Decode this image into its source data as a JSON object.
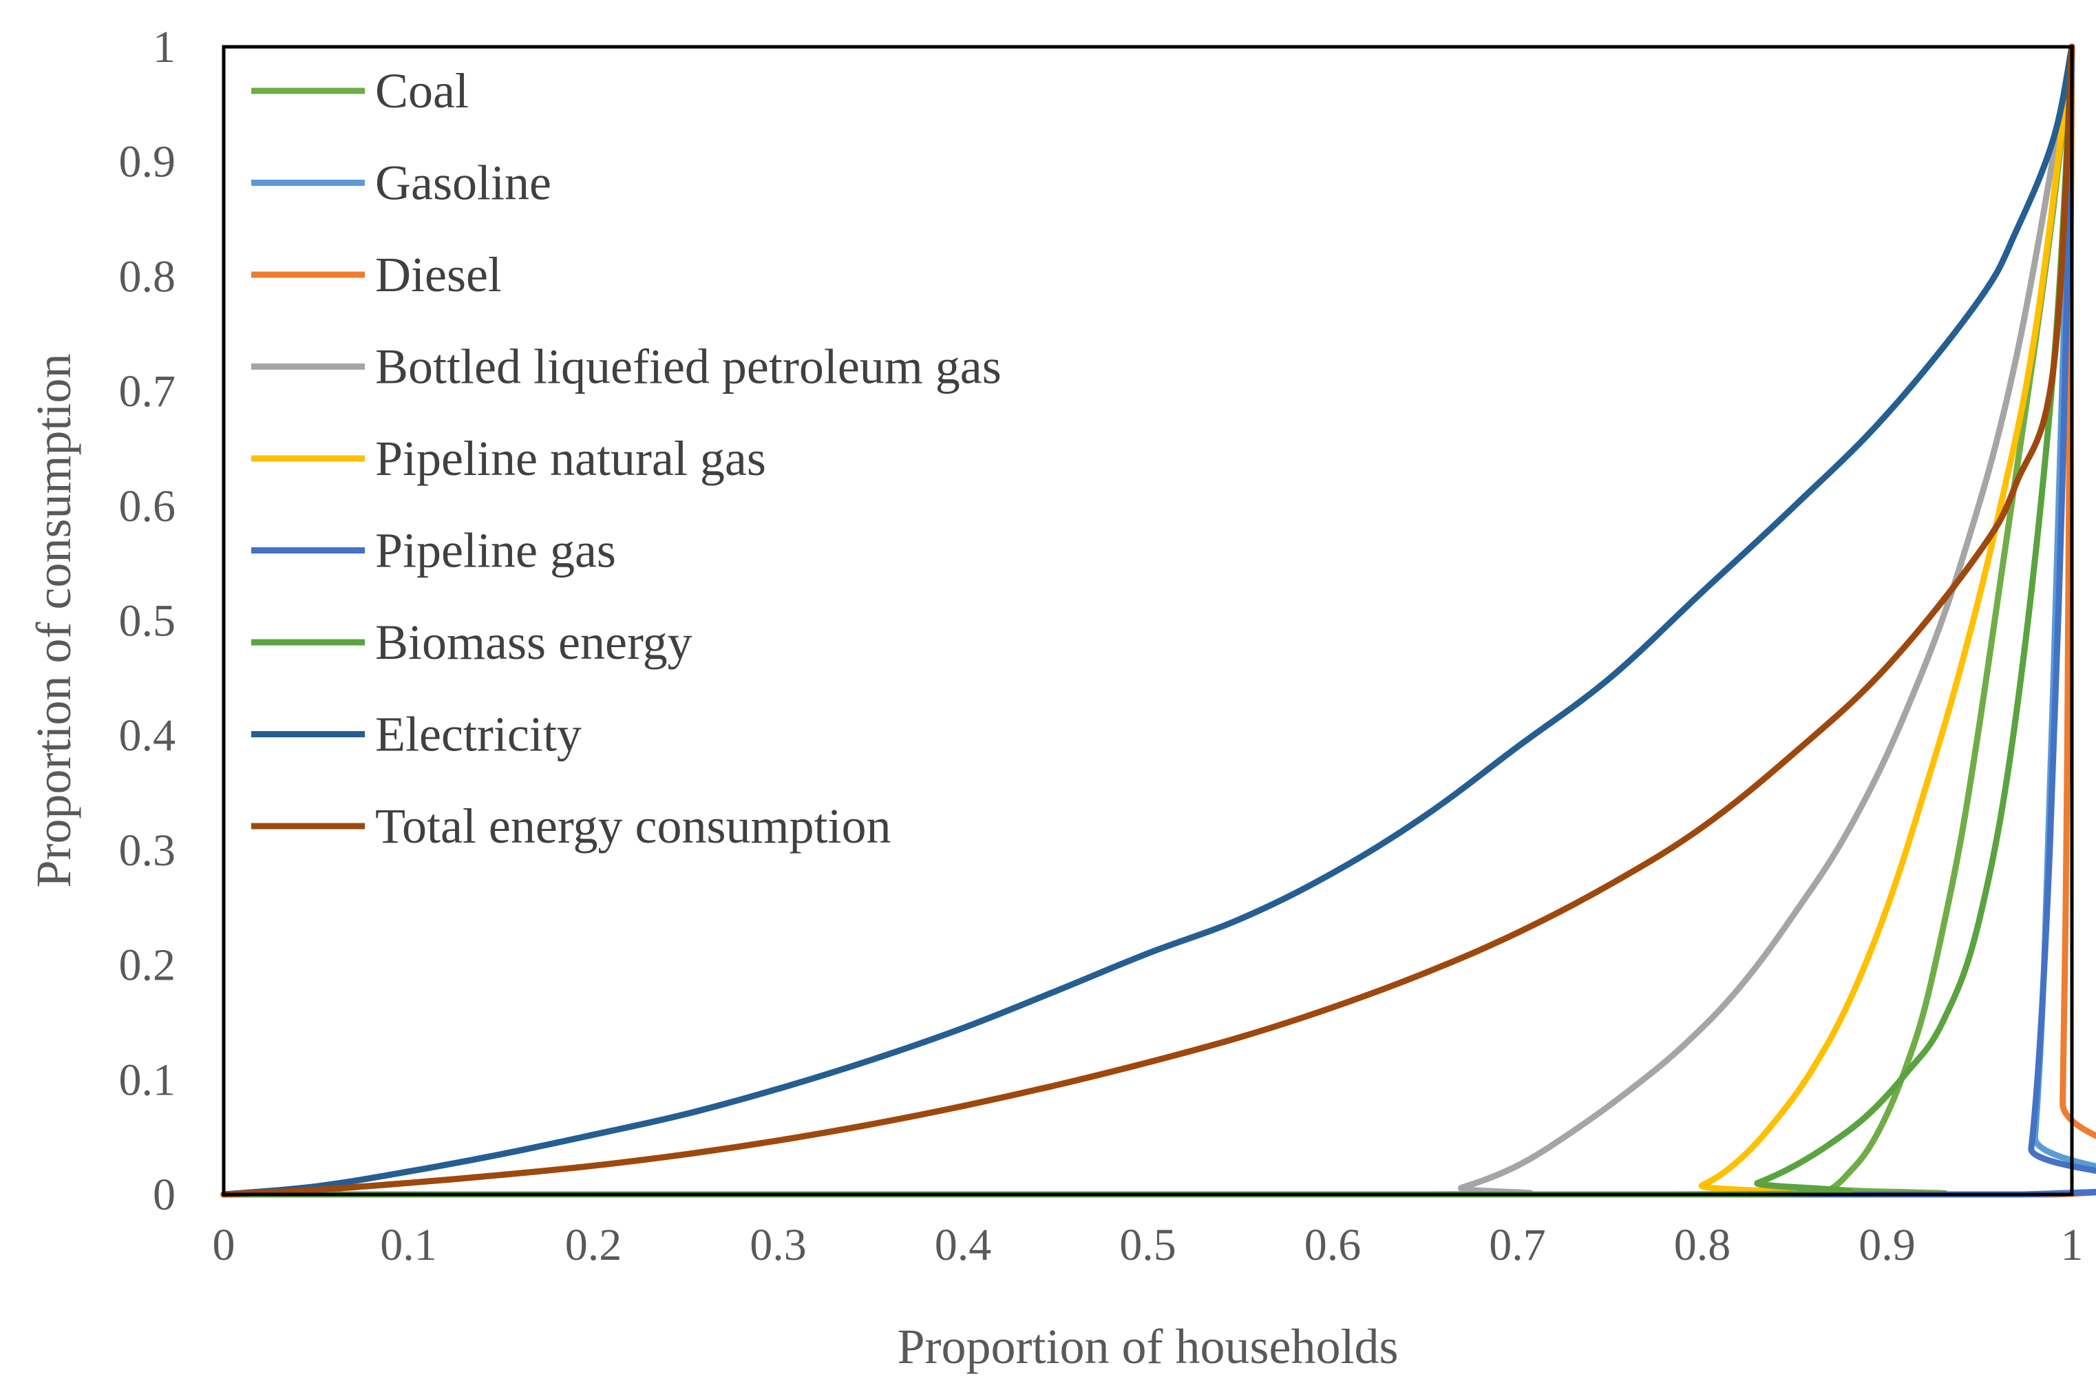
{
  "chart_data": {
    "type": "line",
    "title": "",
    "xlabel": "Proportion of households",
    "ylabel": "Proportion of consumption",
    "xlim": [
      0,
      1
    ],
    "ylim": [
      0,
      1
    ],
    "grid": false,
    "legend_position": "top-left",
    "x_ticks": [
      "0",
      "0.1",
      "0.2",
      "0.3",
      "0.4",
      "0.5",
      "0.6",
      "0.7",
      "0.8",
      "0.9",
      "1"
    ],
    "y_ticks": [
      "0",
      "0.1",
      "0.2",
      "0.3",
      "0.4",
      "0.5",
      "0.6",
      "0.7",
      "0.8",
      "0.9",
      "1"
    ],
    "series": [
      {
        "name": "Coal",
        "color": "#70AD47",
        "x": [
          0,
          0.86,
          0.87,
          0.88,
          0.89,
          0.9,
          0.91,
          0.92,
          0.93,
          0.94,
          0.95,
          0.96,
          0.97,
          0.98,
          0.99,
          1
        ],
        "y": [
          0,
          0,
          0.005,
          0.02,
          0.04,
          0.07,
          0.11,
          0.16,
          0.23,
          0.31,
          0.41,
          0.52,
          0.63,
          0.74,
          0.86,
          1
        ]
      },
      {
        "name": "Gasoline",
        "color": "#5B9BD5",
        "x": [
          0,
          0.975,
          0.98,
          0.985,
          0.99,
          0.995,
          1
        ],
        "y": [
          0,
          0,
          0.05,
          0.2,
          0.45,
          0.72,
          1
        ]
      },
      {
        "name": "Diesel",
        "color": "#ED7D31",
        "x": [
          0,
          0.992,
          0.995,
          0.997,
          0.998,
          0.999,
          1
        ],
        "y": [
          0,
          0,
          0.08,
          0.3,
          0.5,
          0.75,
          1
        ]
      },
      {
        "name": "Bottled liquefied petroleum gas",
        "color": "#A5A5A5",
        "x": [
          0,
          0.65,
          0.67,
          0.7,
          0.73,
          0.76,
          0.79,
          0.82,
          0.85,
          0.88,
          0.91,
          0.94,
          0.97,
          1
        ],
        "y": [
          0,
          0,
          0.006,
          0.025,
          0.055,
          0.09,
          0.13,
          0.18,
          0.245,
          0.32,
          0.42,
          0.55,
          0.73,
          1
        ]
      },
      {
        "name": "Pipeline natural gas",
        "color": "#FFC000",
        "x": [
          0,
          0.78,
          0.8,
          0.82,
          0.84,
          0.86,
          0.88,
          0.9,
          0.92,
          0.94,
          0.96,
          0.98,
          1
        ],
        "y": [
          0,
          0,
          0.008,
          0.03,
          0.065,
          0.11,
          0.17,
          0.25,
          0.35,
          0.46,
          0.59,
          0.75,
          1
        ]
      },
      {
        "name": "Pipeline gas",
        "color": "#4472C4",
        "x": [
          0,
          0.973,
          0.978,
          0.983,
          0.988,
          0.993,
          0.997,
          1
        ],
        "y": [
          0,
          0,
          0.04,
          0.14,
          0.3,
          0.52,
          0.76,
          1
        ]
      },
      {
        "name": "Biomass energy",
        "color": "#5AA33F",
        "x": [
          0,
          0.81,
          0.83,
          0.85,
          0.87,
          0.89,
          0.91,
          0.93,
          0.95,
          0.97,
          0.99,
          1
        ],
        "y": [
          0,
          0,
          0.01,
          0.025,
          0.045,
          0.07,
          0.105,
          0.15,
          0.24,
          0.42,
          0.72,
          1
        ]
      },
      {
        "name": "Electricity",
        "color": "#255E91",
        "x": [
          0,
          0.05,
          0.1,
          0.15,
          0.2,
          0.25,
          0.3,
          0.35,
          0.4,
          0.45,
          0.5,
          0.55,
          0.6,
          0.65,
          0.7,
          0.75,
          0.8,
          0.85,
          0.9,
          0.95,
          0.97,
          0.99,
          1
        ],
        "y": [
          0,
          0.007,
          0.02,
          0.035,
          0.052,
          0.07,
          0.092,
          0.117,
          0.145,
          0.177,
          0.21,
          0.24,
          0.28,
          0.33,
          0.39,
          0.45,
          0.525,
          0.6,
          0.68,
          0.78,
          0.84,
          0.92,
          1
        ]
      },
      {
        "name": "Total energy consumption",
        "color": "#9E480E",
        "x": [
          0,
          0.05,
          0.1,
          0.15,
          0.2,
          0.25,
          0.3,
          0.35,
          0.4,
          0.45,
          0.5,
          0.55,
          0.6,
          0.65,
          0.7,
          0.75,
          0.8,
          0.85,
          0.9,
          0.95,
          0.97,
          0.99,
          1
        ],
        "y": [
          0,
          0.004,
          0.01,
          0.017,
          0.025,
          0.035,
          0.047,
          0.061,
          0.077,
          0.095,
          0.115,
          0.137,
          0.163,
          0.193,
          0.228,
          0.27,
          0.32,
          0.385,
          0.46,
          0.56,
          0.62,
          0.72,
          1
        ]
      }
    ]
  }
}
